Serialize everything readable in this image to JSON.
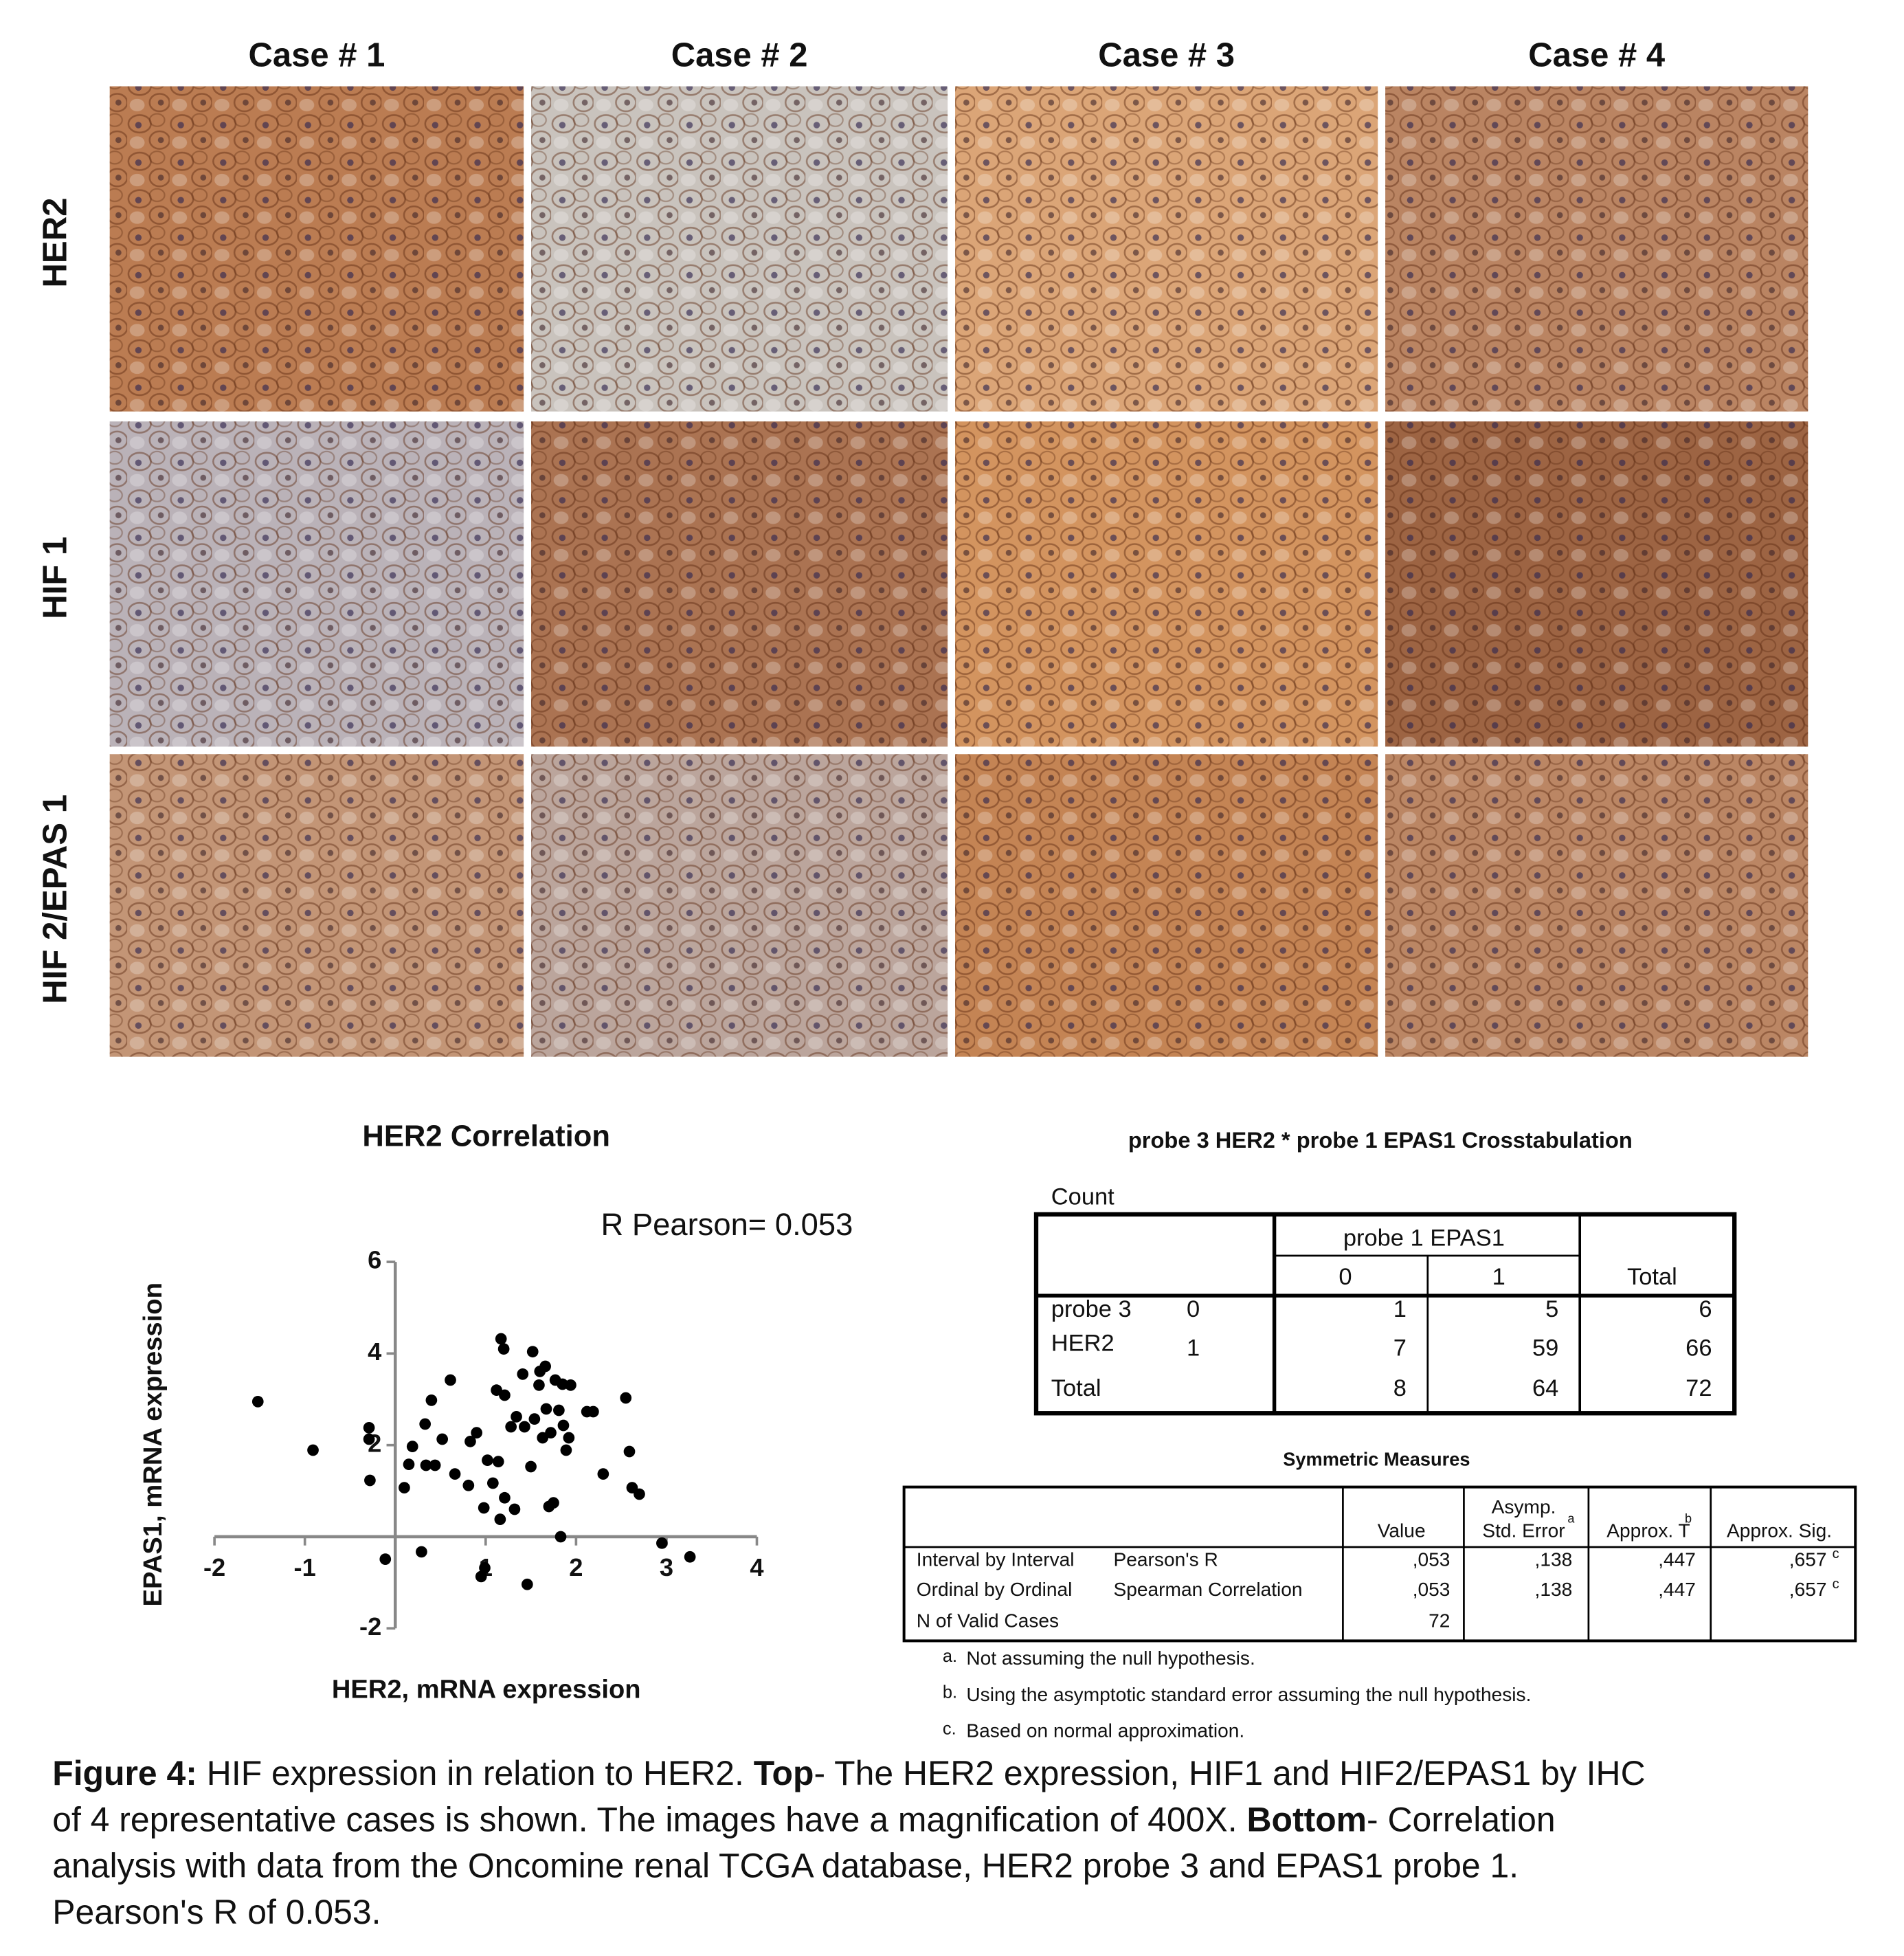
{
  "figure": {
    "columns": [
      "Case # 1",
      "Case # 2",
      "Case # 3",
      "Case # 4"
    ],
    "rows": [
      "HER2",
      "HIF 1",
      "HIF 2/EPAS 1"
    ]
  },
  "chart_data": {
    "type": "scatter",
    "title": "HER2 Correlation",
    "annotation": "R Pearson= 0.053",
    "x_label": "HER2, mRNA expression",
    "y_label": "EPAS1, mRNA expression",
    "color": "#000000",
    "x": [
      -1.52,
      -0.91,
      -0.29,
      -0.29,
      -0.28,
      -0.11,
      0.1,
      0.15,
      0.19,
      0.29,
      0.33,
      0.34,
      0.4,
      0.44,
      0.52,
      0.61,
      0.66,
      0.81,
      0.83,
      0.9,
      0.95,
      0.98,
      0.99,
      1.02,
      1.08,
      1.12,
      1.14,
      1.16,
      1.17,
      1.2,
      1.21,
      1.21,
      1.28,
      1.32,
      1.34,
      1.41,
      1.43,
      1.46,
      1.5,
      1.52,
      1.54,
      1.59,
      1.6,
      1.63,
      1.66,
      1.67,
      1.7,
      1.72,
      1.75,
      1.77,
      1.81,
      1.83,
      1.85,
      1.86,
      1.89,
      1.92,
      1.94,
      2.12,
      2.19,
      2.3,
      2.55,
      2.59,
      2.62,
      2.7,
      2.95,
      3.26
    ],
    "values": [
      2.95,
      1.89,
      2.38,
      2.13,
      1.23,
      -0.49,
      1.07,
      1.58,
      1.97,
      -0.33,
      2.46,
      1.56,
      2.98,
      1.56,
      2.13,
      3.42,
      1.37,
      1.12,
      2.08,
      2.27,
      -0.87,
      0.63,
      -0.68,
      1.67,
      1.17,
      3.2,
      1.64,
      0.38,
      4.32,
      4.1,
      0.85,
      3.09,
      2.4,
      0.6,
      2.62,
      3.55,
      2.4,
      -1.04,
      1.53,
      4.04,
      2.57,
      3.31,
      3.61,
      2.16,
      3.72,
      2.79,
      0.66,
      2.27,
      0.74,
      3.42,
      2.76,
      0.0,
      3.33,
      2.43,
      1.89,
      2.16,
      3.31,
      2.73,
      2.73,
      1.37,
      3.03,
      1.86,
      1.07,
      0.93,
      -0.14,
      -0.44
    ],
    "xlim": [
      -2,
      4
    ],
    "ylim": [
      -2,
      6
    ],
    "xticks": [
      -2,
      -1,
      1,
      2,
      3,
      4
    ],
    "yticks": [
      -2,
      2,
      4,
      6
    ]
  },
  "crosstab": {
    "title": "probe 3 HER2 * probe 1 EPAS1 Crosstabulation",
    "count_label": "Count",
    "column_group": "probe 1 EPAS1",
    "columns": [
      "0",
      "1",
      "Total"
    ],
    "row_group": [
      "probe 3",
      "HER2"
    ],
    "rows": [
      {
        "label": "0",
        "values": [
          1,
          5,
          6
        ]
      },
      {
        "label": "1",
        "values": [
          7,
          59,
          66
        ]
      }
    ],
    "total": {
      "label": "Total",
      "values": [
        8,
        64,
        72
      ]
    }
  },
  "symmetric_measures": {
    "title": "Symmetric Measures",
    "columns": [
      {
        "lines": [
          "Value"
        ]
      },
      {
        "lines": [
          "Asymp.",
          "Std. Error"
        ],
        "note": "a"
      },
      {
        "lines": [
          "Approx. T"
        ],
        "note": "b"
      },
      {
        "lines": [
          "Approx. Sig."
        ]
      }
    ],
    "rows": [
      {
        "group": "Interval by Interval",
        "measure": "Pearson's R",
        "cells": [
          ",053",
          ",138",
          ",447",
          ",657"
        ],
        "note": "c"
      },
      {
        "group": "Ordinal by Ordinal",
        "measure": "Spearman Correlation",
        "cells": [
          ",053",
          ",138",
          ",447",
          ",657"
        ],
        "note": "c"
      },
      {
        "group": "N of Valid Cases",
        "cells": [
          72
        ]
      }
    ],
    "footnotes": [
      {
        "mark": "a.",
        "text": "Not assuming the null hypothesis."
      },
      {
        "mark": "b.",
        "text": "Using the asymptotic standard error assuming the null hypothesis."
      },
      {
        "mark": "c.",
        "text": "Based on normal approximation."
      }
    ]
  },
  "caption": {
    "lines": [
      [
        "Figure 4:",
        " HIF expression in relation to HER2. ",
        "Top",
        "- The HER2 expression, HIF1 and HIF2/EPAS1 by IHC"
      ],
      [
        "of 4 representative cases is shown. The images have a magnification of 400X. ",
        "Bottom",
        "- Correlation"
      ],
      [
        "analysis with data from the Oncomine renal TCGA database, HER2 probe 3 and EPAS1 probe 1."
      ],
      [
        "Pearson's R of 0.053."
      ]
    ]
  }
}
